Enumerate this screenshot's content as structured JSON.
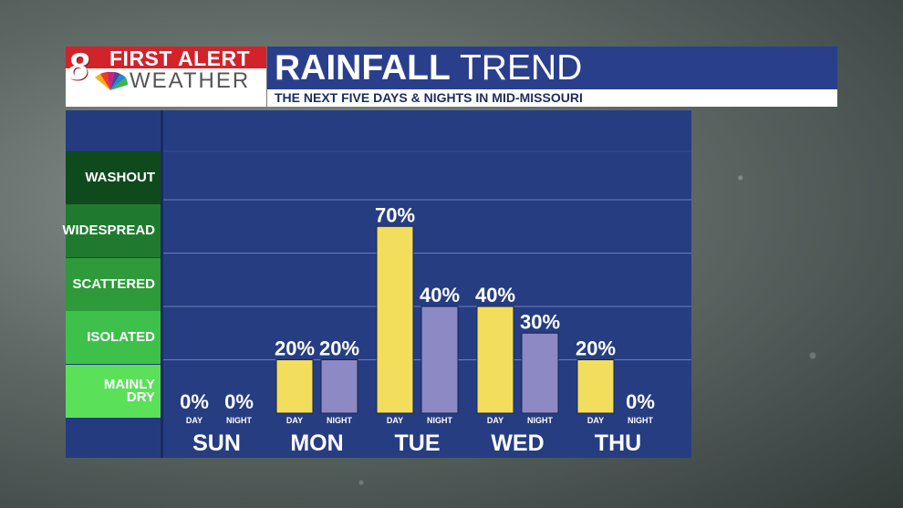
{
  "header": {
    "logo_line1": "FIRST ALERT",
    "logo_line2": "WEATHER",
    "logo_number": "8",
    "title_bold": "RAINFALL",
    "title_light": "TREND",
    "subtitle": "THE NEXT FIVE DAYS & NIGHTS IN MID-MISSOURI"
  },
  "legend": [
    {
      "label": "WASHOUT",
      "color": "#0e4a1c"
    },
    {
      "label": "WIDESPREAD",
      "color": "#1f7a2e"
    },
    {
      "label": "SCATTERED",
      "color": "#2e9a3a"
    },
    {
      "label": "ISOLATED",
      "color": "#3ec14a"
    },
    {
      "label": "MAINLY DRY",
      "color": "#5be05a"
    }
  ],
  "colors": {
    "day_bar": "#f2de5c",
    "night_bar": "#8d89c4",
    "panel": "#263d82",
    "grid": "#6b7fb8"
  },
  "chart_data": {
    "type": "bar",
    "title": "RAINFALL TREND",
    "subtitle": "THE NEXT FIVE DAYS & NIGHTS IN MID-MISSOURI",
    "categories": [
      "SUN",
      "MON",
      "TUE",
      "WED",
      "THU"
    ],
    "sub_labels": [
      "DAY",
      "NIGHT"
    ],
    "series": [
      {
        "name": "DAY",
        "values": [
          0,
          20,
          70,
          40,
          20
        ]
      },
      {
        "name": "NIGHT",
        "values": [
          0,
          20,
          40,
          30,
          0
        ]
      }
    ],
    "value_suffix": "%",
    "ylim": [
      0,
      100
    ],
    "grid": true
  }
}
